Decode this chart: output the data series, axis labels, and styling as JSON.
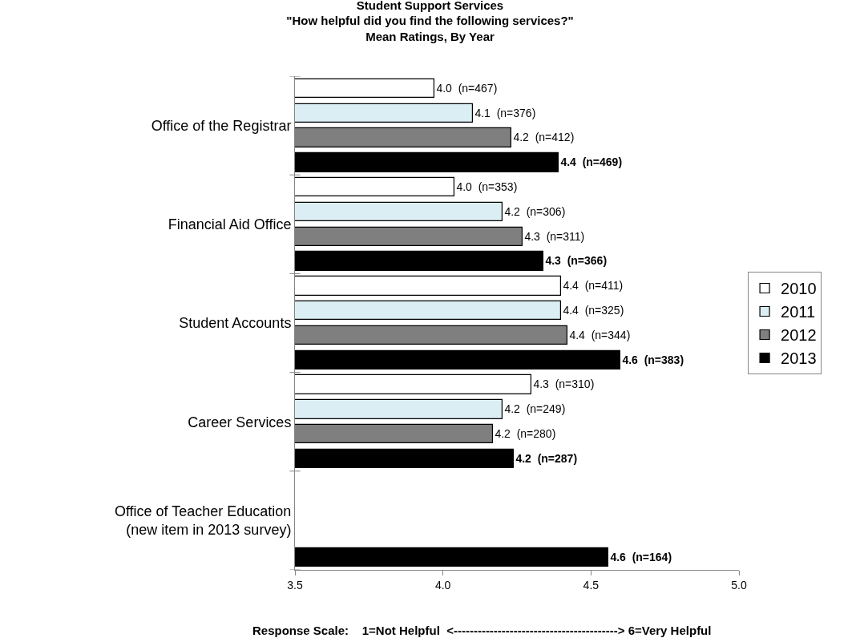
{
  "chart_data": {
    "type": "bar",
    "orientation": "horizontal",
    "title": "Student Support Services\n\"How helpful did you find the following services?\"\nMean Ratings, By Year",
    "categories": [
      "Office of the Registrar",
      "Financial Aid Office",
      "Student Accounts",
      "Career Services",
      "Office of Teacher Education\n(new item in 2013 survey)"
    ],
    "series": [
      {
        "name": "2010",
        "color": "#ffffff",
        "values": [
          3.97,
          4.04,
          4.4,
          4.3,
          null
        ],
        "value_labels": [
          "4.0  (n=467)",
          "4.0  (n=353)",
          "4.4  (n=411)",
          "4.3  (n=310)",
          null
        ]
      },
      {
        "name": "2011",
        "color": "#dbeef4",
        "values": [
          4.1,
          4.2,
          4.4,
          4.2,
          null
        ],
        "value_labels": [
          "4.1  (n=376)",
          "4.2  (n=306)",
          "4.4  (n=325)",
          "4.2  (n=249)",
          null
        ]
      },
      {
        "name": "2012",
        "color": "#7f7f7f",
        "values": [
          4.23,
          4.27,
          4.42,
          4.17,
          null
        ],
        "value_labels": [
          "4.2  (n=412)",
          "4.3  (n=311)",
          "4.4  (n=344)",
          "4.2  (n=280)",
          null
        ]
      },
      {
        "name": "2013",
        "color": "#000000",
        "values": [
          4.39,
          4.34,
          4.6,
          4.24,
          4.56
        ],
        "value_labels": [
          "4.4  (n=469)",
          "4.3  (n=366)",
          "4.6  (n=383)",
          "4.2  (n=287)",
          "4.6  (n=164)"
        ]
      }
    ],
    "xlim": [
      3.5,
      5.0
    ],
    "xticks": [
      "3.5",
      "4.0",
      "4.5",
      "5.0"
    ],
    "annotations": [
      "Response Scale:    1=Not Helpful  <-----------------------------------------> 6=Very Helpful"
    ],
    "legend": "right"
  }
}
